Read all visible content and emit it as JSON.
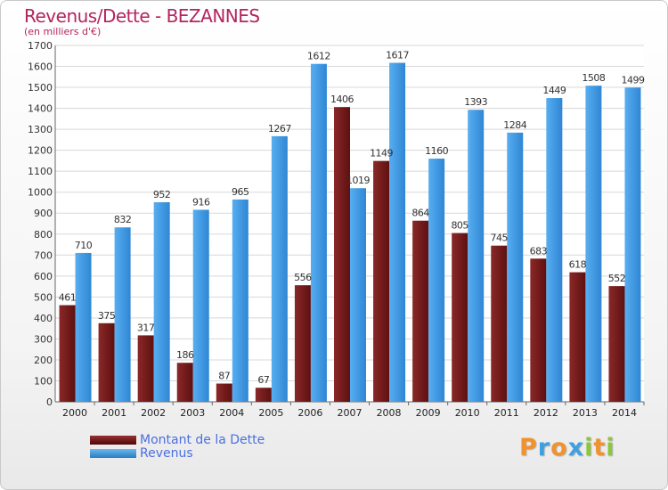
{
  "header": {
    "title": "Revenus/Dette - BEZANNES",
    "subtitle": "(en milliers d'€)"
  },
  "chart_data": {
    "type": "bar",
    "categories": [
      "2000",
      "2001",
      "2002",
      "2003",
      "2004",
      "2005",
      "2006",
      "2007",
      "2008",
      "2009",
      "2010",
      "2011",
      "2012",
      "2013",
      "2014"
    ],
    "series": [
      {
        "name": "Montant de la Dette",
        "color": "#7a1c1c",
        "values": [
          461,
          375,
          317,
          186,
          87,
          67,
          556,
          1406,
          1149,
          864,
          805,
          745,
          683,
          618,
          552
        ],
        "labels": [
          "461",
          "375",
          "317",
          "186",
          "87",
          "67",
          "556",
          "1406",
          "1149",
          "864",
          "805",
          "745",
          "683",
          "618",
          "552"
        ]
      },
      {
        "name": "Revenus",
        "color": "#3c98e0",
        "values": [
          710,
          832,
          952,
          916,
          965,
          1267,
          1612,
          1019,
          1617,
          1160,
          1393,
          1284,
          1449,
          1508,
          1499
        ],
        "labels": [
          "710",
          "832",
          "952",
          "916",
          "965",
          "1267",
          "1612",
          "1019",
          "1617",
          "1160",
          "1393",
          "1284",
          "1449",
          "1508",
          "1499"
        ]
      }
    ],
    "y_ticks": [
      "0",
      "100",
      "200",
      "300",
      "400",
      "500",
      "600",
      "700",
      "800",
      "900",
      "1000",
      "1100",
      "1200",
      "1300",
      "1400",
      "1500",
      "1600",
      "1700"
    ],
    "ylim": [
      0,
      1700
    ],
    "grid": true,
    "legend_position": "bottom-left"
  },
  "legend": {
    "items": [
      {
        "label": "Montant de la Dette",
        "color": "#7a1c1c"
      },
      {
        "label": "Revenus",
        "color": "#3c98e0"
      }
    ]
  },
  "brand": {
    "letters": [
      "P",
      "r",
      "o",
      "x",
      "i",
      "t",
      "i"
    ],
    "colors": [
      "#f0922e",
      "#3fa0e0",
      "#f0922e",
      "#3fa0e0",
      "#8cc63f",
      "#f0922e",
      "#8cc63f"
    ]
  }
}
